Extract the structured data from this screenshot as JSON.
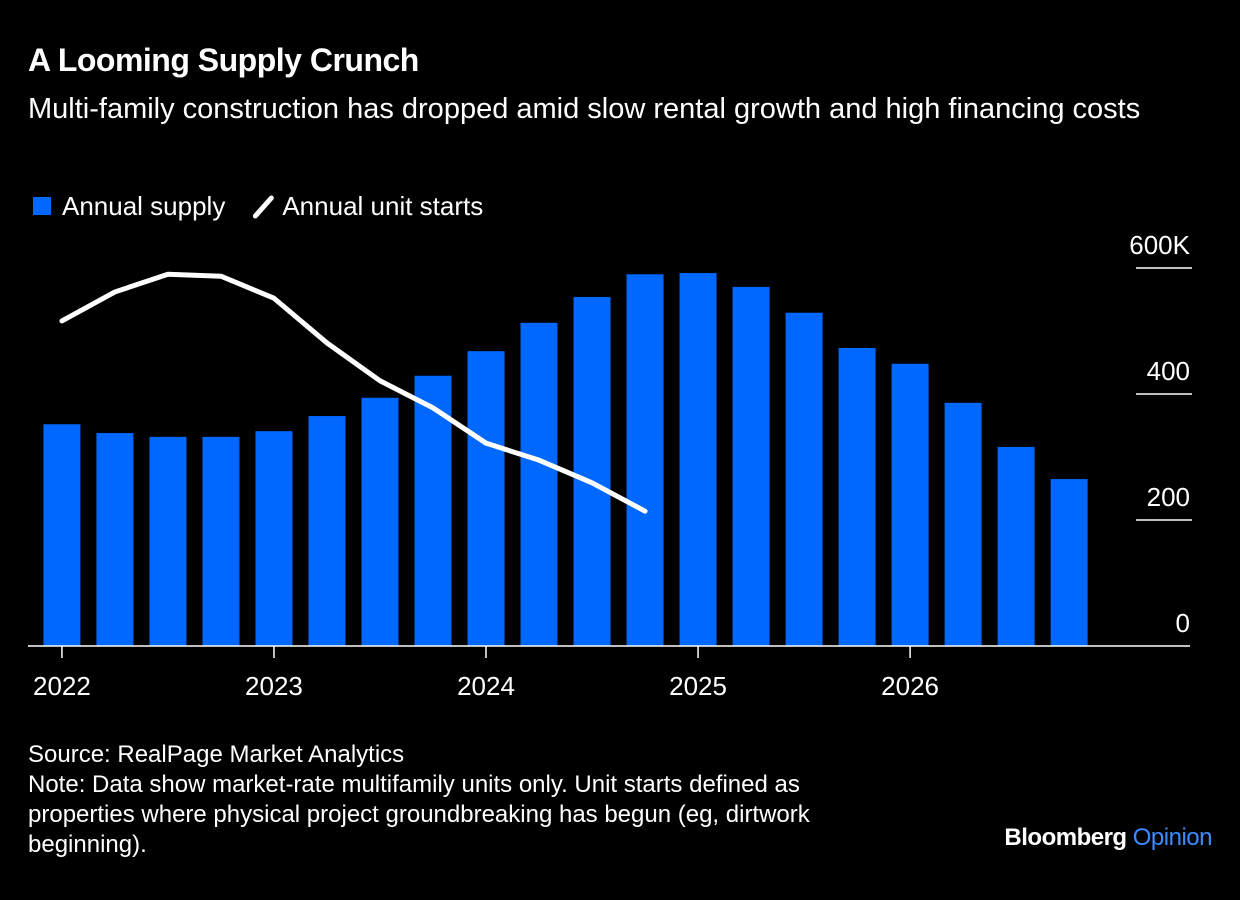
{
  "chart_data": {
    "type": "bar",
    "title": "A Looming Supply Crunch",
    "subtitle": "Multi-family construction has dropped amid slow rental growth and high financing costs",
    "x": [
      2022,
      2022.25,
      2022.5,
      2022.75,
      2023,
      2023.25,
      2023.5,
      2023.75,
      2024,
      2024.25,
      2024.5,
      2024.75,
      2025,
      2025.25,
      2025.5,
      2025.75,
      2026,
      2026.25,
      2026.5,
      2026.75
    ],
    "series": [
      {
        "name": "Annual supply",
        "type": "bar",
        "color": "#0068ff",
        "values": [
          352,
          338,
          332,
          332,
          341,
          365,
          394,
          429,
          468,
          513,
          554,
          590,
          592,
          570,
          529,
          473,
          448,
          386,
          316,
          265
        ]
      },
      {
        "name": "Annual unit starts",
        "type": "line",
        "color": "#ffffff",
        "values": [
          516,
          562,
          590,
          587,
          552,
          481,
          421,
          378,
          322,
          295,
          259,
          214,
          null,
          null,
          null,
          null,
          null,
          null,
          null,
          null
        ]
      }
    ],
    "xlim": [
      2021.84,
      2027.32
    ],
    "xticks": [
      2022,
      2023,
      2024,
      2025,
      2026
    ],
    "ylim": [
      0,
      600
    ],
    "yticks": [
      0,
      200,
      400,
      {
        "value": 600,
        "label": "600K"
      }
    ],
    "grid": true,
    "legend": "top-left",
    "source": "Source: RealPage Market Analytics",
    "note": "Note: Data show market-rate multifamily units only. Unit starts defined as properties where physical project groundbreaking has begun (eg, dirtwork beginning).",
    "brand": "Bloomberg",
    "brand_suffix": "Opinion"
  }
}
